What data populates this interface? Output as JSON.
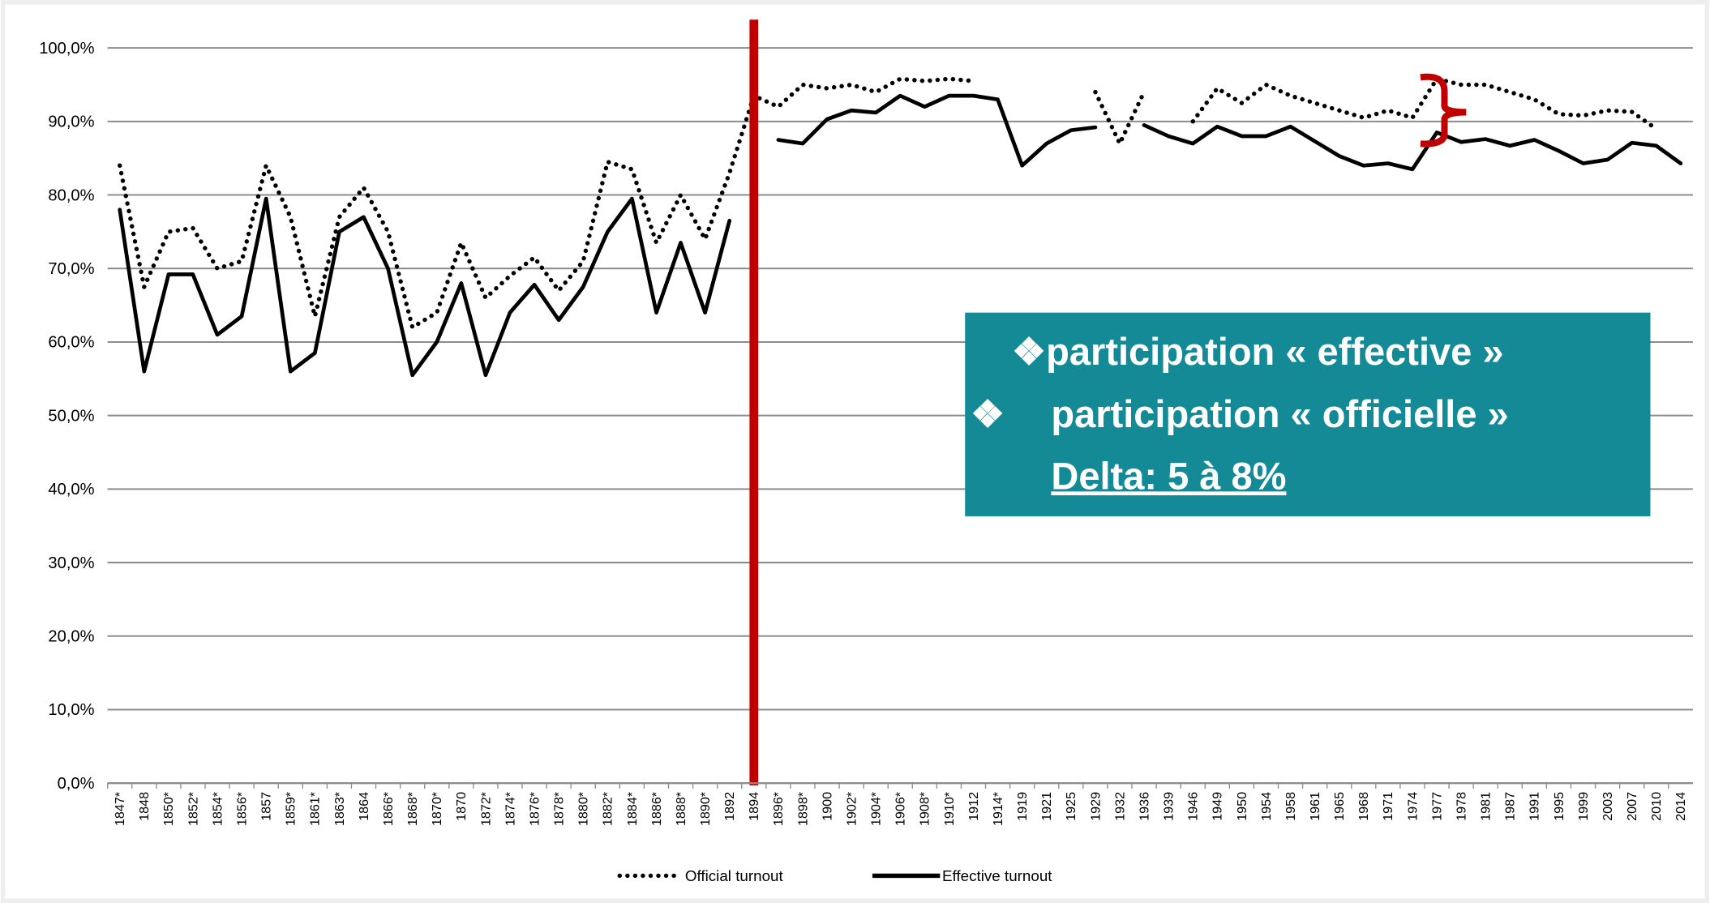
{
  "chart_data": {
    "type": "line",
    "categories": [
      "1847*",
      "1848",
      "1850*",
      "1852*",
      "1854*",
      "1856*",
      "1857",
      "1859*",
      "1861*",
      "1863*",
      "1864",
      "1866*",
      "1868*",
      "1870*",
      "1870",
      "1872*",
      "1874*",
      "1876*",
      "1878*",
      "1880*",
      "1882*",
      "1884*",
      "1886*",
      "1888*",
      "1890*",
      "1892",
      "1894",
      "1896*",
      "1898*",
      "1900",
      "1902*",
      "1904*",
      "1906*",
      "1908*",
      "1910*",
      "1912",
      "1914*",
      "1919",
      "1921",
      "1925",
      "1929",
      "1932",
      "1936",
      "1939",
      "1946",
      "1949",
      "1950",
      "1954",
      "1958",
      "1961",
      "1965",
      "1968",
      "1971",
      "1974",
      "1977",
      "1978",
      "1981",
      "1987",
      "1991",
      "1995",
      "1999",
      "2003",
      "2007",
      "2010",
      "2014"
    ],
    "series": [
      {
        "name": "Official turnout",
        "color": "#000000",
        "style": "dotted",
        "values": [
          84,
          67.5,
          75,
          75.5,
          70,
          71,
          84,
          77,
          63.5,
          77,
          81,
          75,
          62,
          64,
          73.5,
          66,
          69,
          71.5,
          67,
          71,
          84.5,
          83.5,
          73.5,
          80,
          74,
          83,
          93.5,
          92,
          95,
          94.5,
          95,
          94,
          95.8,
          95.5,
          95.8,
          95.5,
          null,
          null,
          null,
          null,
          94,
          87,
          94,
          null,
          90,
          94.5,
          92.5,
          95,
          93.5,
          92.5,
          91.5,
          90.5,
          91.5,
          90.5,
          95.8,
          95,
          95,
          94,
          93,
          91,
          90.8,
          91.5,
          91.3,
          89,
          null
        ]
      },
      {
        "name": "Effective turnout",
        "color": "#000000",
        "style": "solid",
        "values": [
          78,
          56,
          69.2,
          69.2,
          61,
          63.5,
          79.5,
          56,
          58.5,
          75,
          77,
          70,
          55.5,
          60,
          68,
          55.5,
          64,
          67.8,
          63,
          67.5,
          75,
          79.5,
          64,
          73.5,
          64,
          76.5,
          null,
          87.5,
          87,
          90.3,
          91.5,
          91.2,
          93.5,
          92,
          93.5,
          93.5,
          93,
          84,
          87,
          88.8,
          89.2,
          null,
          89.5,
          88,
          87,
          89.3,
          88,
          88,
          89.3,
          87.3,
          85.3,
          84,
          84.3,
          83.5,
          88.5,
          87.2,
          87.6,
          86.7,
          87.5,
          86,
          84.3,
          84.8,
          87.1,
          86.7,
          84.3
        ]
      }
    ],
    "ylim": [
      0,
      100
    ],
    "yticks": [
      {
        "value": 0,
        "label": "0,0%"
      },
      {
        "value": 10,
        "label": "10,0%"
      },
      {
        "value": 20,
        "label": "20,0%"
      },
      {
        "value": 30,
        "label": "30,0%"
      },
      {
        "value": 40,
        "label": "40,0%"
      },
      {
        "value": 50,
        "label": "50,0%"
      },
      {
        "value": 60,
        "label": "60,0%"
      },
      {
        "value": 70,
        "label": "70,0%"
      },
      {
        "value": 80,
        "label": "80,0%"
      },
      {
        "value": 90,
        "label": "90,0%"
      },
      {
        "value": 100,
        "label": "100,0%"
      }
    ],
    "grid": true,
    "annotations": [
      "❖participation « effective »",
      "❖",
      "participation  « officielle »",
      "Delta: 5 à 8%"
    ]
  }
}
